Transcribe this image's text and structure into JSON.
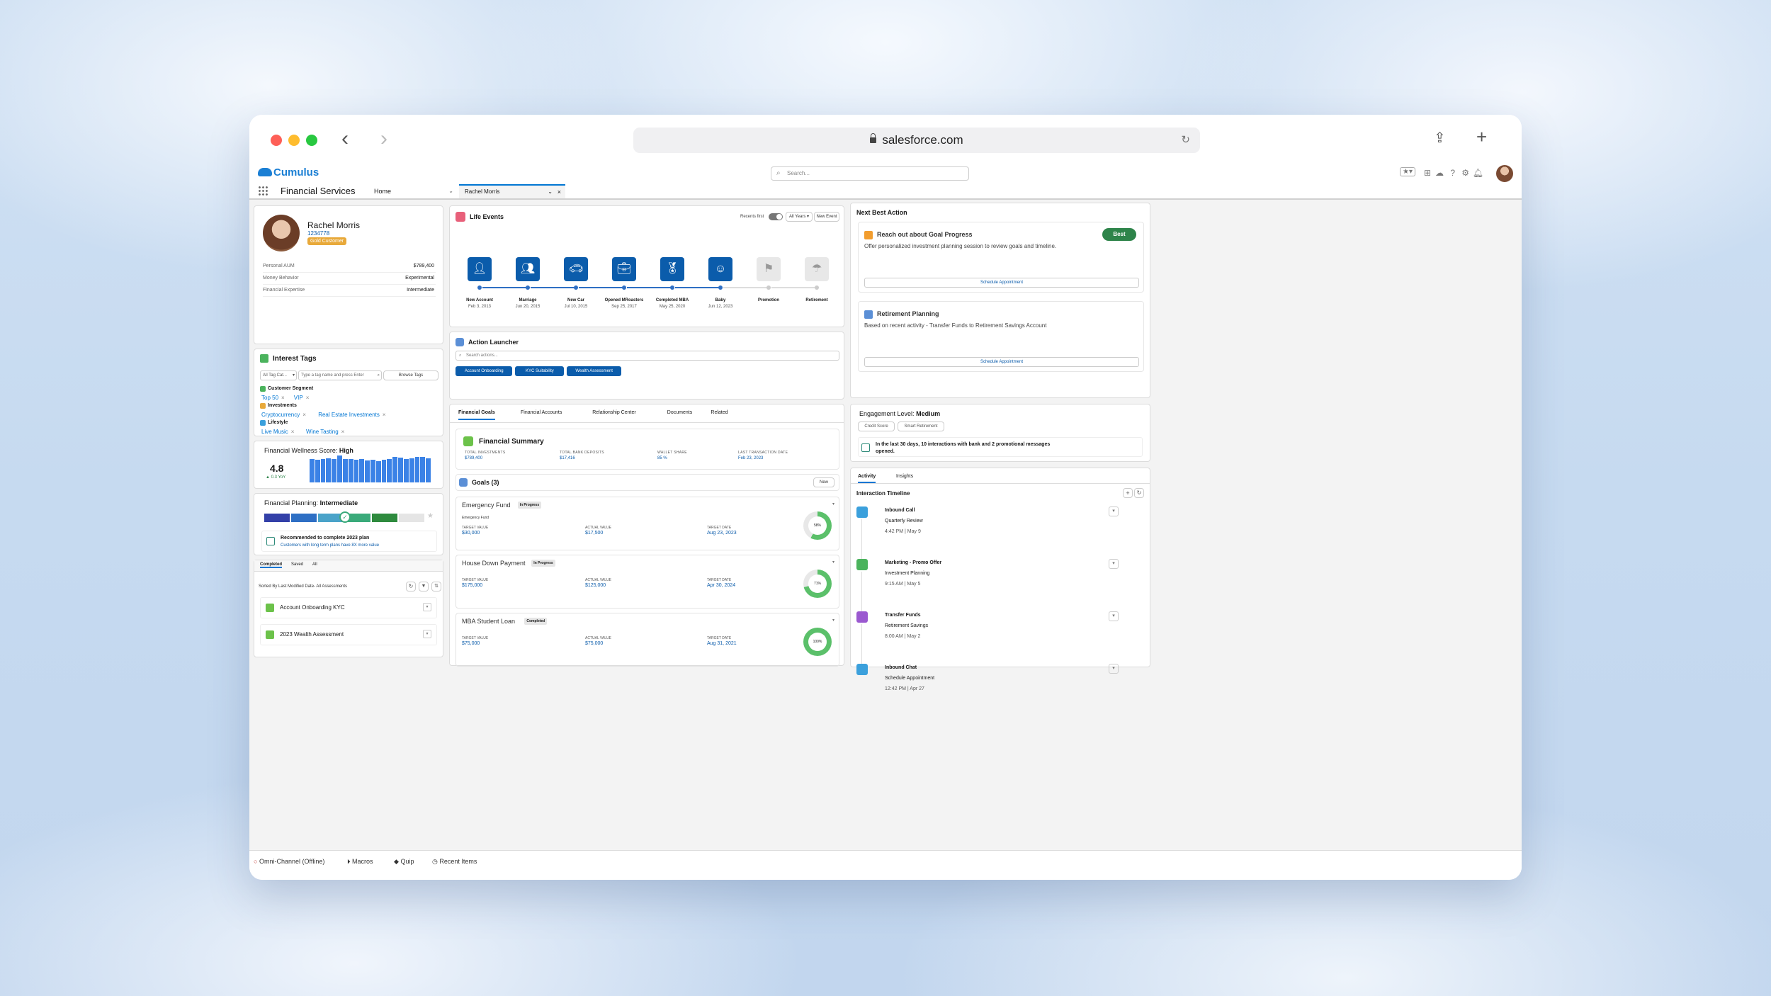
{
  "browser": {
    "url": "salesforce.com"
  },
  "header": {
    "logo": "Cumulus",
    "search_placeholder": "Search...",
    "app_name": "Financial Services",
    "home_tab": "Home",
    "record_tab": "Rachel Morris"
  },
  "profile": {
    "name": "Rachel Morris",
    "id": "1234778",
    "badge": "Gold Customer",
    "fields": [
      {
        "label": "Personal AUM",
        "value": "$789,400"
      },
      {
        "label": "Money Behavior",
        "value": "Experimental"
      },
      {
        "label": "Financial Expertise",
        "value": "Intermediate"
      }
    ]
  },
  "interest_tags": {
    "title": "Interest Tags",
    "filter": "All Tag Cat...",
    "input_placeholder": "Type a tag name and press Enter",
    "browse": "Browse Tags",
    "groups": [
      {
        "name": "Customer Segment",
        "tags": [
          "Top 50",
          "VIP"
        ]
      },
      {
        "name": "Investments",
        "tags": [
          "Cryptocurrency",
          "Real Estate Investments"
        ]
      },
      {
        "name": "Lifestyle",
        "tags": [
          "Live Music",
          "Wine Tasting"
        ]
      }
    ]
  },
  "wellness": {
    "label": "Financial Wellness Score:",
    "level": "High",
    "score": "4.8",
    "change": "▲ 0.3 YoY",
    "bars": [
      0.88,
      0.85,
      0.86,
      0.9,
      0.87,
      1.0,
      0.88,
      0.87,
      0.85,
      0.86,
      0.82,
      0.84,
      0.8,
      0.83,
      0.86,
      0.95,
      0.92,
      0.87,
      0.9,
      0.96,
      0.95,
      0.9
    ],
    "accent": "#3b82e6"
  },
  "planning": {
    "label": "Financial Planning:",
    "level": "Intermediate",
    "rec_title": "Recommended to complete 2023 plan",
    "rec_sub": "Customers with long term plans have 8X more value"
  },
  "assessments": {
    "tabs": [
      "Completed",
      "Saved",
      "All"
    ],
    "sort": "Sorted By Last Modified Date- All Assessments",
    "items": [
      "Account Onboarding KYC",
      "2023 Wealth Assessment"
    ]
  },
  "life_events": {
    "title": "Life Events",
    "recents": "Recents first",
    "filter": "All Years",
    "new_btn": "New Event",
    "events": [
      {
        "name": "New Account",
        "date": "Feb 3, 2013",
        "icon": "person-icon"
      },
      {
        "name": "Marriage",
        "date": "Jun 20, 2015",
        "icon": "couple-icon"
      },
      {
        "name": "New Car",
        "date": "Jul 10, 2015",
        "icon": "car-icon"
      },
      {
        "name": "Opened MRoasters",
        "date": "Sep 25, 2017",
        "icon": "briefcase-icon"
      },
      {
        "name": "Completed MBA",
        "date": "May 25, 2020",
        "icon": "award-icon"
      },
      {
        "name": "Baby",
        "date": "Jun 12, 2023",
        "icon": "baby-icon"
      },
      {
        "name": "Promotion",
        "date": "",
        "icon": "promotion-icon"
      },
      {
        "name": "Retirement",
        "date": "",
        "icon": "retirement-icon"
      }
    ]
  },
  "action_launcher": {
    "title": "Action Launcher",
    "placeholder": "Search actions...",
    "actions": [
      "Account Onboarding",
      "KYC Suitability",
      "Wealth Assessment"
    ]
  },
  "tabs": [
    "Financial Goals",
    "Financial Accounts",
    "Relationship Center",
    "Documents",
    "Related"
  ],
  "summary": {
    "title": "Financial Summary",
    "items": [
      {
        "label": "TOTAL INVESTMENTS",
        "value": "$789,400"
      },
      {
        "label": "TOTAL BANK DEPOSITS",
        "value": "$17,416"
      },
      {
        "label": "WALLET SHARE",
        "value": "85 %"
      },
      {
        "label": "LAST TRANSACTION DATE",
        "value": "Feb 23, 2023"
      }
    ]
  },
  "goals": {
    "title": "Goals (3)",
    "new_btn": "New",
    "items": [
      {
        "name": "Emergency Fund",
        "status": "In Progress",
        "sub": "Emergency Fund",
        "target": "$30,000",
        "actual": "$17,500",
        "date": "Aug 23, 2023",
        "pct": "58%",
        "pct_num": 58
      },
      {
        "name": "House Down Payment",
        "status": "In Progress",
        "sub": "",
        "target": "$175,000",
        "actual": "$125,000",
        "date": "Apr 30, 2024",
        "pct": "71%",
        "pct_num": 71
      },
      {
        "name": "MBA Student Loan",
        "status": "Completed",
        "sub": "",
        "target": "$75,000",
        "actual": "$75,000",
        "date": "Aug 31, 2021",
        "pct": "100%",
        "pct_num": 100
      }
    ],
    "labels": {
      "target": "TARGET VALUE",
      "actual": "ACTUAL VALUE",
      "date": "TARGET DATE"
    }
  },
  "nba": {
    "title": "Next Best Action",
    "items": [
      {
        "title": "Reach out about Goal Progress",
        "badge": "Best",
        "desc": "Offer personalized investment planning session to review goals and timeline.",
        "btn": "Schedule Appointment"
      },
      {
        "title": "Retirement Planning",
        "badge": "",
        "desc": "Based on recent activity - Transfer Funds to Retirement Savings Account",
        "btn": "Schedule Appointment"
      }
    ]
  },
  "engagement": {
    "label": "Engagement Level:",
    "level": "Medium",
    "buttons": [
      "Credit Score",
      "Smart Retirement"
    ],
    "note": "In the last 30 days, 10 interactions with bank and 2 promotional messages opened."
  },
  "activity": {
    "tabs": [
      "Activity",
      "Insights"
    ],
    "title": "Interaction Timeline",
    "items": [
      {
        "title": "Inbound Call",
        "sub": "Quarterly Review",
        "time": "4:42 PM | May 9",
        "color": "#3ba0dc"
      },
      {
        "title": "Marketing - Promo Offer",
        "sub": "Investment Planning",
        "time": "9:15 AM | May 5",
        "color": "#4bb35d"
      },
      {
        "title": "Transfer Funds",
        "sub": "Retirement Savings",
        "time": "8:00 AM | May 2",
        "color": "#9b59d0"
      },
      {
        "title": "Inbound Chat",
        "sub": "Schedule Appointment",
        "time": "12:42 PM | Apr 27",
        "color": "#3ba0dc"
      }
    ]
  },
  "footer": [
    "Omni-Channel (Offline)",
    "Macros",
    "Quip",
    "Recent Items"
  ]
}
